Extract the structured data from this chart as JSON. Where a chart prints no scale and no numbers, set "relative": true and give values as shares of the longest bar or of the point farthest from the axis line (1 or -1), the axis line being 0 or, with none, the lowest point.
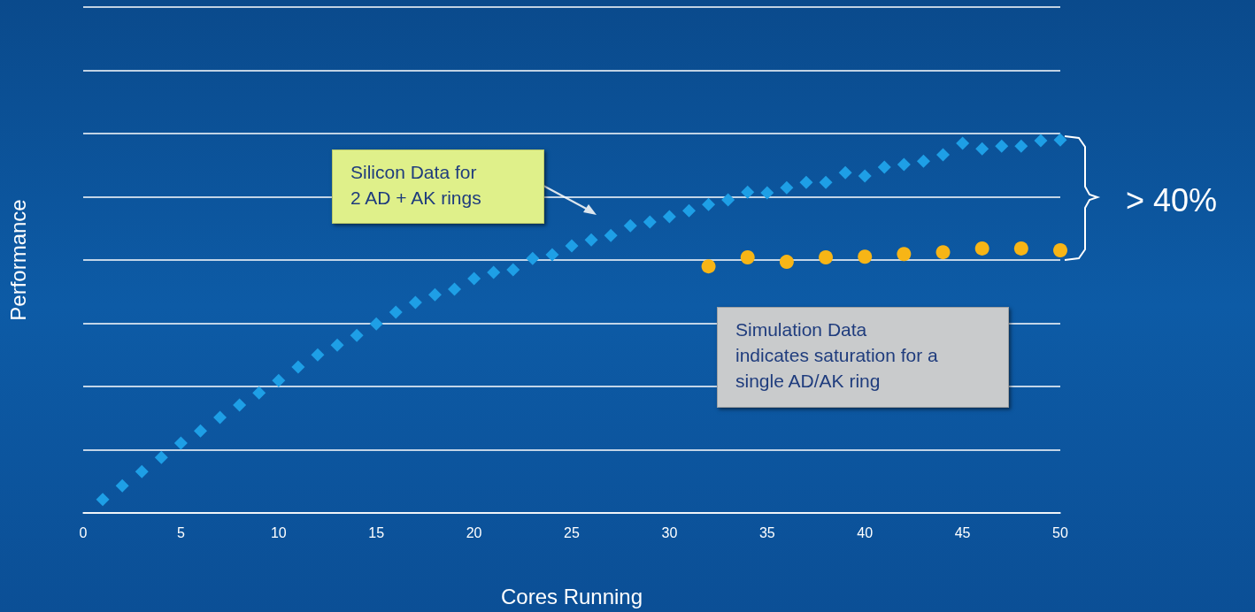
{
  "chart_data": {
    "type": "scatter",
    "xlabel": "Cores Running",
    "ylabel": "Performance",
    "relative": true,
    "xlim": [
      0,
      50
    ],
    "xticks": [
      0,
      5,
      10,
      15,
      20,
      25,
      30,
      35,
      40,
      45,
      50
    ],
    "grid": "y",
    "annotations": [
      "Silicon Data for\n2 AD + AK rings",
      "Simulation Data\nindicates saturation for a\nsingle AD/AK ring",
      "> 40%"
    ],
    "series": [
      {
        "color": "#1e9fe6",
        "marker": "diamond",
        "x": [
          1,
          2,
          3,
          4,
          5,
          6,
          7,
          8,
          9,
          10,
          11,
          12,
          13,
          14,
          15,
          16,
          17,
          18,
          19,
          20,
          21,
          22,
          23,
          24,
          25,
          26,
          27,
          28,
          29,
          30,
          31,
          32,
          33,
          34,
          35,
          36,
          37,
          38,
          39,
          40,
          41,
          42,
          43,
          44,
          45,
          46,
          47,
          48,
          49,
          50
        ],
        "values": [
          0.036,
          0.073,
          0.111,
          0.149,
          0.187,
          0.22,
          0.256,
          0.289,
          0.322,
          0.355,
          0.391,
          0.424,
          0.45,
          0.476,
          0.507,
          0.538,
          0.564,
          0.585,
          0.6,
          0.628,
          0.645,
          0.652,
          0.682,
          0.692,
          0.716,
          0.732,
          0.744,
          0.77,
          0.78,
          0.794,
          0.81,
          0.827,
          0.839,
          0.86,
          0.858,
          0.872,
          0.886,
          0.886,
          0.912,
          0.903,
          0.927,
          0.934,
          0.943,
          0.96,
          0.991,
          0.976,
          0.983,
          0.983,
          0.998,
          1
        ]
      },
      {
        "color": "#f7b516",
        "marker": "circle",
        "x": [
          32,
          34,
          36,
          38,
          40,
          42,
          44,
          46,
          48,
          50
        ],
        "values": [
          0.661,
          0.685,
          0.673,
          0.685,
          0.687,
          0.694,
          0.699,
          0.709,
          0.709,
          0.704
        ]
      }
    ]
  }
}
